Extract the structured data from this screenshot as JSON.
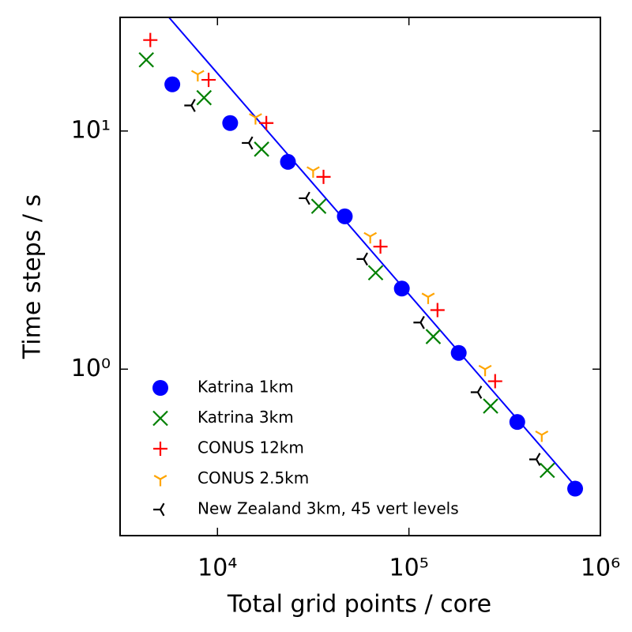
{
  "chart_data": {
    "type": "scatter",
    "xlabel": "Total grid points / core",
    "ylabel": "Time steps / s",
    "xscale": "log",
    "yscale": "log",
    "xlim": [
      3100,
      1000000
    ],
    "ylim": [
      0.2,
      30
    ],
    "xticks": [
      {
        "value": 10000,
        "label": "10⁴"
      },
      {
        "value": 100000,
        "label": "10⁵"
      },
      {
        "value": 1000000,
        "label": "10⁶"
      }
    ],
    "yticks": [
      {
        "value": 1,
        "label": "10⁰"
      },
      {
        "value": 10,
        "label": "10¹"
      }
    ],
    "legend": "lower left",
    "series": [
      {
        "name": "Katrina 1km",
        "color": "#0000ff",
        "marker": "o",
        "x": [
          5810,
          11650,
          23340,
          46240,
          91800,
          182000,
          368000,
          738000
        ],
        "values": [
          15.7,
          10.8,
          7.42,
          4.38,
          2.18,
          1.17,
          0.6,
          0.315
        ]
      },
      {
        "name": "Katrina 3km",
        "color": "#008000",
        "marker": "x",
        "x": [
          4250,
          8510,
          17000,
          33800,
          67000,
          134000,
          267000,
          528000
        ],
        "values": [
          19.9,
          13.8,
          8.39,
          4.83,
          2.54,
          1.37,
          0.7,
          0.376
        ]
      },
      {
        "name": "CONUS 12km",
        "color": "#ff0000",
        "marker": "+",
        "x": [
          4460,
          8990,
          18000,
          35800,
          71000,
          141000,
          282000
        ],
        "values": [
          24.1,
          16.4,
          10.8,
          6.42,
          3.27,
          1.77,
          0.89
        ]
      },
      {
        "name": "CONUS 2.5km",
        "color": "#ffa500",
        "marker": "tri_down",
        "x": [
          7890,
          15800,
          31600,
          62800,
          126000,
          250000,
          494000
        ],
        "values": [
          17.3,
          11.4,
          6.82,
          3.61,
          2.01,
          1.0,
          0.53
        ]
      },
      {
        "name": "New Zealand 3km, 45 vert levels",
        "color": "#000000",
        "marker": "tri_left",
        "x": [
          7310,
          14600,
          29000,
          58100,
          115000,
          229000,
          463000
        ],
        "values": [
          12.8,
          8.91,
          5.22,
          2.9,
          1.57,
          0.8,
          0.418
        ]
      }
    ],
    "fit_line": {
      "color": "#0000ff",
      "x": [
        5500,
        759000
      ],
      "values": [
        30.4,
        0.315
      ]
    }
  }
}
